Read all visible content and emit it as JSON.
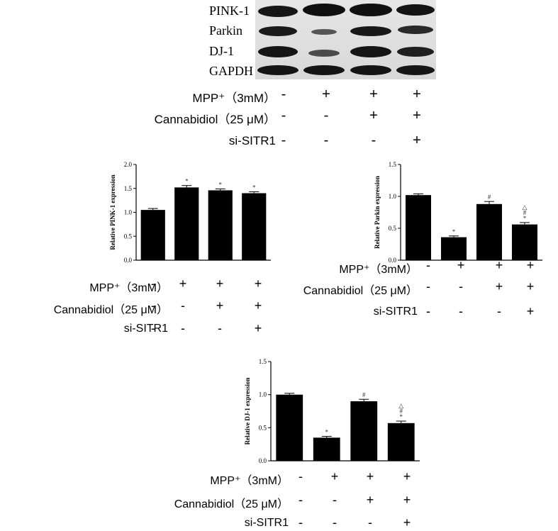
{
  "western_blot": {
    "labels": [
      "PINK-1",
      "Parkin",
      "DJ-1",
      "GAPDH"
    ],
    "conditions": [
      {
        "label": "MPP⁺（3mM）",
        "values": [
          "-",
          "+",
          "+",
          "+"
        ]
      },
      {
        "label": "Cannabidiol（25 μM）",
        "values": [
          "-",
          "-",
          "+",
          "+"
        ]
      },
      {
        "label": "si-SITR1",
        "values": [
          "-",
          "-",
          "-",
          "+"
        ]
      }
    ]
  },
  "chart_data": [
    {
      "type": "bar",
      "ylabel": "Relative PINK-1 expression",
      "ylim": [
        0,
        2.0
      ],
      "yticks": [
        "0.0",
        "0.5",
        "1.0",
        "1.5",
        "2.0"
      ],
      "values": [
        1.05,
        1.52,
        1.46,
        1.4
      ],
      "errors": [
        0.03,
        0.04,
        0.03,
        0.03
      ],
      "annotations": [
        "",
        "*",
        "*",
        "*"
      ],
      "conditions": [
        {
          "label": "MPP⁺（3mM）",
          "values": [
            "-",
            "+",
            "+",
            "+"
          ]
        },
        {
          "label": "Cannabidiol（25 μM）",
          "values": [
            "-",
            "-",
            "+",
            "+"
          ]
        },
        {
          "label": "si-SITR1",
          "values": [
            "-",
            "-",
            "-",
            "+"
          ]
        }
      ]
    },
    {
      "type": "bar",
      "ylabel": "Relative Parkin expression",
      "ylim": [
        0,
        1.5
      ],
      "yticks": [
        "0.0",
        "0.5",
        "1.0",
        "1.5"
      ],
      "values": [
        1.02,
        0.36,
        0.88,
        0.56
      ],
      "errors": [
        0.02,
        0.02,
        0.04,
        0.03
      ],
      "annotations": [
        "",
        "*",
        "#",
        "△\n#\n*"
      ],
      "conditions": [
        {
          "label": "MPP⁺（3mM）",
          "values": [
            "-",
            "+",
            "+",
            "+"
          ]
        },
        {
          "label": "Cannabidiol（25 μM）",
          "values": [
            "-",
            "-",
            "+",
            "+"
          ]
        },
        {
          "label": "si-SITR1",
          "values": [
            "-",
            "-",
            "-",
            "+"
          ]
        }
      ]
    },
    {
      "type": "bar",
      "ylabel": "Relative DJ-1 expression",
      "ylim": [
        0,
        1.5
      ],
      "yticks": [
        "0.0",
        "0.5",
        "1.0",
        "1.5"
      ],
      "values": [
        1.0,
        0.35,
        0.9,
        0.57
      ],
      "errors": [
        0.02,
        0.02,
        0.03,
        0.03
      ],
      "annotations": [
        "",
        "*",
        "#",
        "△\n#\n*"
      ],
      "conditions": [
        {
          "label": "MPP⁺（3mM）",
          "values": [
            "-",
            "+",
            "+",
            "+"
          ]
        },
        {
          "label": "Cannabidiol（25 μM）",
          "values": [
            "-",
            "-",
            "+",
            "+"
          ]
        },
        {
          "label": "si-SITR1",
          "values": [
            "-",
            "-",
            "-",
            "+"
          ]
        }
      ]
    }
  ]
}
